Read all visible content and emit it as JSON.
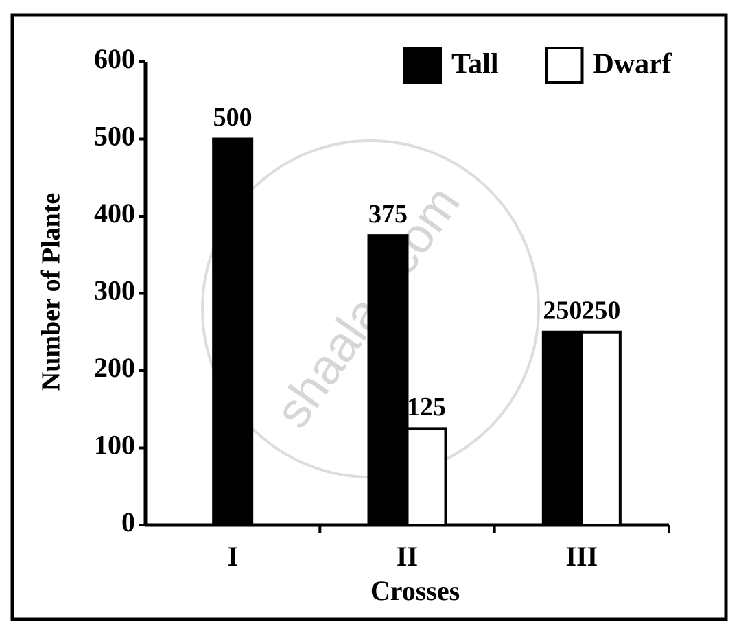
{
  "chart_data": {
    "type": "bar",
    "xlabel": "Crosses",
    "ylabel": "Number of Plante",
    "watermark": "shaalaa.com",
    "categories": [
      "I",
      "II",
      "III"
    ],
    "series": [
      {
        "name": "Tall",
        "color": "#000000",
        "values": [
          500,
          375,
          250
        ]
      },
      {
        "name": "Dwarf",
        "color": "#ffffff",
        "values": [
          null,
          125,
          250
        ]
      }
    ],
    "ylim": [
      0,
      600
    ],
    "yticks": [
      0,
      100,
      200,
      300,
      400,
      500,
      600
    ],
    "grid": false,
    "legend": "top-right"
  }
}
